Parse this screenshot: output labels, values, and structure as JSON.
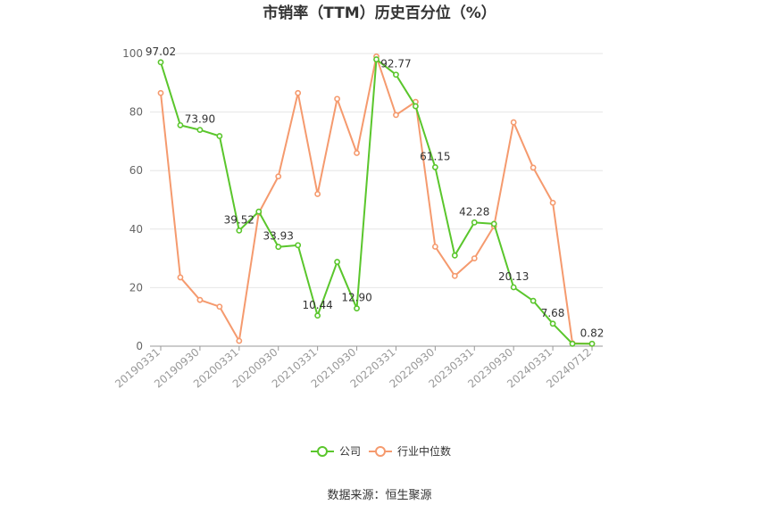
{
  "chart_data": {
    "type": "line",
    "title": "市销率（TTM）历史百分位（%）",
    "xlabel": "",
    "ylabel": "",
    "ylim": [
      0,
      100
    ],
    "yticks": [
      0,
      20,
      40,
      60,
      80,
      100
    ],
    "grid": true,
    "legend_position": "bottom",
    "x": [
      "20190331",
      "20190630",
      "20190930",
      "20191231",
      "20200331",
      "20200630",
      "20200930",
      "20201231",
      "20210331",
      "20210630",
      "20210930",
      "20211231",
      "20220331",
      "20220630",
      "20220930",
      "20221231",
      "20230331",
      "20230630",
      "20230930",
      "20231231",
      "20240331",
      "20240630",
      "20240712"
    ],
    "x_tick_labels": [
      "20190331",
      "20190930",
      "20200331",
      "20200930",
      "20210331",
      "20210930",
      "20220331",
      "20220930",
      "20230331",
      "20230930",
      "20240331",
      "20240712"
    ],
    "series": [
      {
        "name": "公司",
        "color": "#5ac62c",
        "values": [
          97.02,
          75.5,
          73.9,
          71.8,
          39.52,
          46.0,
          33.93,
          34.5,
          10.44,
          28.8,
          12.9,
          98.0,
          92.77,
          82.0,
          61.15,
          31.0,
          42.28,
          41.8,
          20.13,
          15.5,
          7.68,
          0.82,
          0.82
        ],
        "data_labels": {
          "0": "97.02",
          "2": "73.90",
          "4": "39.52",
          "6": "33.93",
          "8": "10.44",
          "10": "12.90",
          "12": "92.77",
          "14": "61.15",
          "16": "42.28",
          "18": "20.13",
          "20": "7.68",
          "22": "0.82"
        }
      },
      {
        "name": "行业中位数",
        "color": "#f59a6e",
        "values": [
          86.5,
          23.5,
          15.8,
          13.5,
          1.8,
          45.5,
          58.0,
          86.5,
          52.0,
          84.5,
          66.0,
          99.0,
          79.0,
          83.5,
          34.0,
          24.0,
          30.0,
          41.0,
          76.5,
          61.0,
          49.0,
          1.0,
          0.8
        ]
      }
    ]
  },
  "source_text": "数据来源：恒生聚源"
}
